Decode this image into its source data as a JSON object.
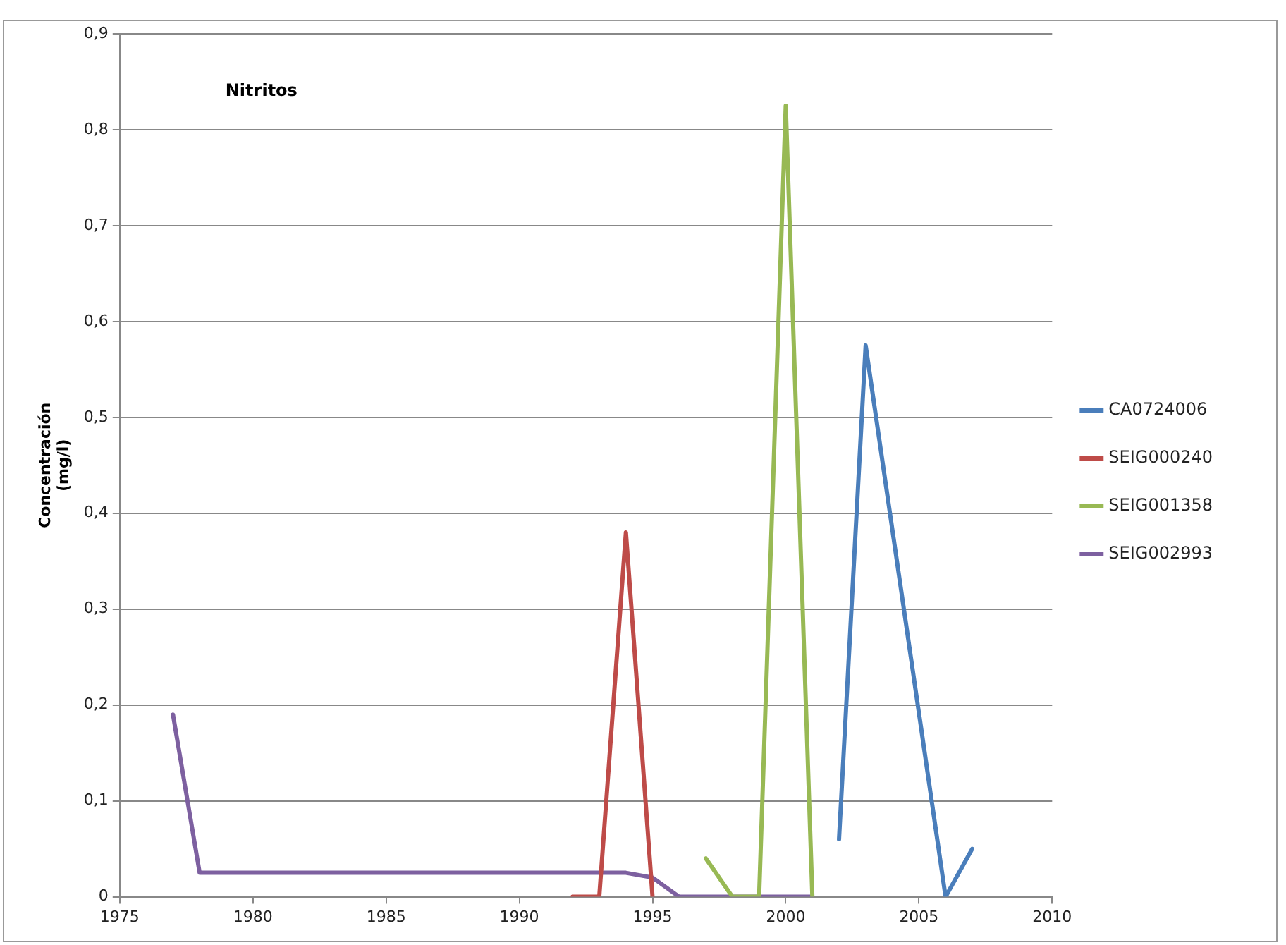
{
  "chart_data": {
    "type": "line",
    "title": "Nitritos",
    "ylabel": "Concentración (mg/l)",
    "xlim": [
      1975,
      2010
    ],
    "xticks": [
      1975,
      1980,
      1985,
      1990,
      1995,
      2000,
      2005,
      2010
    ],
    "ylim": [
      0,
      0.9
    ],
    "yticks": [
      {
        "value": 0,
        "label": "0"
      },
      {
        "value": 0.1,
        "label": "0,1"
      },
      {
        "value": 0.2,
        "label": "0,2"
      },
      {
        "value": 0.3,
        "label": "0,3"
      },
      {
        "value": 0.4,
        "label": "0,4"
      },
      {
        "value": 0.5,
        "label": "0,5"
      },
      {
        "value": 0.6,
        "label": "0,6"
      },
      {
        "value": 0.7,
        "label": "0,7"
      },
      {
        "value": 0.8,
        "label": "0,8"
      },
      {
        "value": 0.9,
        "label": "0,9"
      }
    ],
    "grid": "y",
    "legend": "right",
    "marker": "none",
    "line_style": "solid",
    "series": [
      {
        "name": "CA0724006",
        "color": "#4a7ebb",
        "x": [
          2002,
          2003,
          2006,
          2007
        ],
        "values": [
          0.06,
          0.575,
          0,
          0.05
        ]
      },
      {
        "name": "SEIG000240",
        "color": "#be4b48",
        "x": [
          1992,
          1993,
          1994,
          1995
        ],
        "values": [
          0,
          0,
          0.38,
          0
        ]
      },
      {
        "name": "SEIG001358",
        "color": "#98b954",
        "x": [
          1997,
          1998,
          1999,
          2000,
          2001
        ],
        "values": [
          0.04,
          0,
          0,
          0.825,
          0
        ]
      },
      {
        "name": "SEIG002993",
        "color": "#7d60a0",
        "x": [
          1977,
          1978,
          1979,
          1980,
          1981,
          1982,
          1983,
          1984,
          1985,
          1986,
          1987,
          1988,
          1989,
          1990,
          1991,
          1992,
          1993,
          1994,
          1995,
          1996,
          1997,
          1998,
          1999,
          2000,
          2001
        ],
        "values": [
          0.19,
          0.025,
          0.025,
          0.025,
          0.025,
          0.025,
          0.025,
          0.025,
          0.025,
          0.025,
          0.025,
          0.025,
          0.025,
          0.025,
          0.025,
          0.025,
          0.025,
          0.025,
          0.02,
          0,
          0,
          0,
          0,
          0,
          0
        ]
      }
    ]
  }
}
